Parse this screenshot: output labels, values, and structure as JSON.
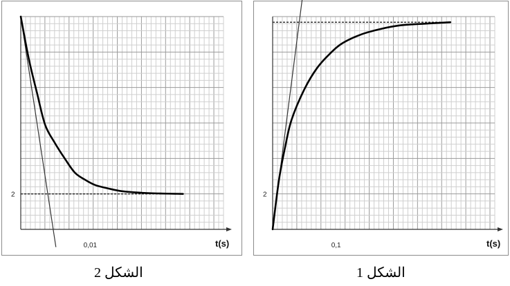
{
  "figures": [
    {
      "id": "left",
      "caption": "الشكل 2"
    },
    {
      "id": "right",
      "caption": "الشكل 1"
    }
  ],
  "chart_data": [
    {
      "panel": "left",
      "type": "line",
      "title": "",
      "xlabel": "t(s)",
      "ylabel": "",
      "grid": true,
      "x_tick_labels": [
        {
          "x": 0.01,
          "label": "0,01"
        }
      ],
      "y_tick_labels": [
        {
          "y": 2,
          "label": "2"
        }
      ],
      "xlim": [
        0,
        0.03
      ],
      "ylim": [
        0,
        12
      ],
      "series": [
        {
          "values": [
            [
              0,
              12
            ],
            [
              0.0012,
              9.6
            ],
            [
              0.0024,
              7.7
            ],
            [
              0.0036,
              5.9
            ],
            [
              0.005,
              4.9
            ],
            [
              0.0065,
              4.0
            ],
            [
              0.008,
              3.2
            ],
            [
              0.0095,
              2.8
            ],
            [
              0.011,
              2.5
            ],
            [
              0.013,
              2.3
            ],
            [
              0.015,
              2.15
            ],
            [
              0.018,
              2.06
            ],
            [
              0.021,
              2.02
            ],
            [
              0.024,
              2.0
            ]
          ]
        }
      ],
      "tangent": [
        [
          0,
          12
        ],
        [
          0.0052,
          -1.0
        ]
      ],
      "asymptote": {
        "y": 2,
        "x_from": 0,
        "x_to": 0.024
      }
    },
    {
      "panel": "right",
      "type": "line",
      "title": "",
      "xlabel": "t(s)",
      "ylabel": "",
      "grid": true,
      "x_tick_labels": [
        {
          "x": 0.1,
          "label": "0,1"
        }
      ],
      "y_tick_labels": [
        {
          "y": 2,
          "label": "2"
        }
      ],
      "xlim": [
        0,
        0.35
      ],
      "ylim": [
        0,
        12
      ],
      "series": [
        {
          "values": [
            [
              0,
              0
            ],
            [
              0.01,
              2.8
            ],
            [
              0.02,
              4.7
            ],
            [
              0.03,
              6.2
            ],
            [
              0.05,
              7.9
            ],
            [
              0.07,
              9.1
            ],
            [
              0.09,
              9.9
            ],
            [
              0.11,
              10.5
            ],
            [
              0.14,
              11.0
            ],
            [
              0.17,
              11.3
            ],
            [
              0.2,
              11.5
            ],
            [
              0.24,
              11.6
            ],
            [
              0.28,
              11.68
            ]
          ]
        }
      ],
      "tangent": [
        [
          0,
          0
        ],
        [
          0.047,
          13.1
        ]
      ],
      "asymptote": {
        "y": 11.68,
        "x_from": 0,
        "x_to": 0.28
      }
    }
  ]
}
